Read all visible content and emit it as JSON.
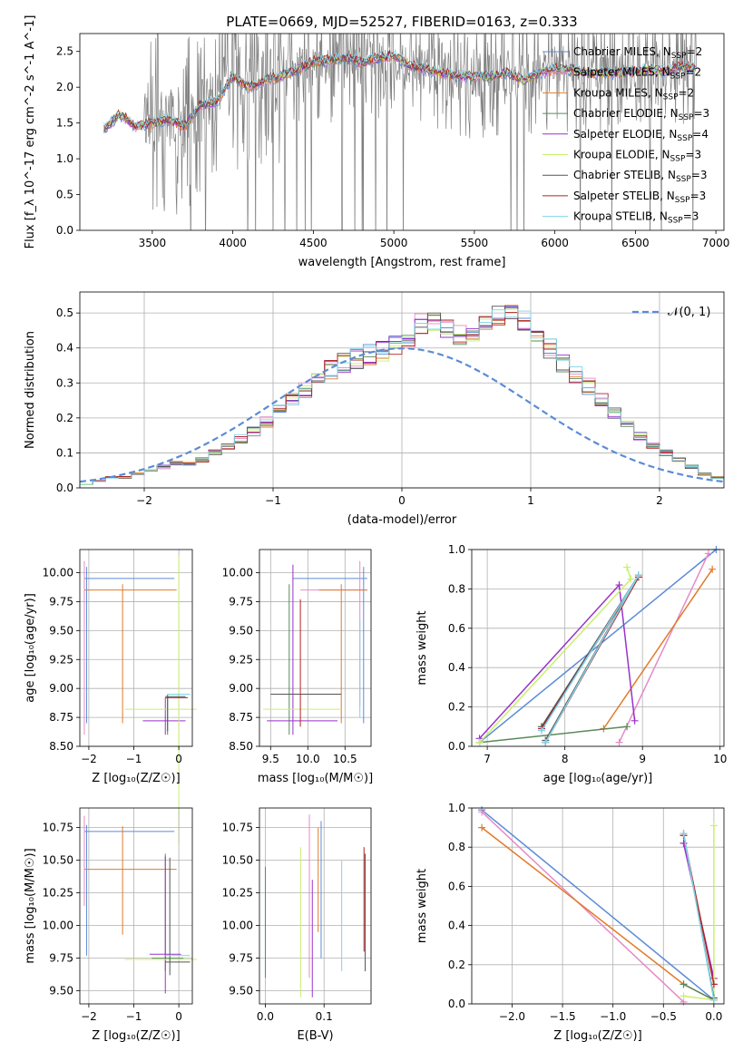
{
  "figure_title": "PLATE=0669, MJD=52527, FIBERID=0163, z=0.333",
  "colors": {
    "chabrier_miles": "#5b8bd6",
    "salpeter_miles": "#e58ac7",
    "kroupa_miles": "#e07b2a",
    "chabrier_elodie": "#5a8a5a",
    "salpeter_elodie": "#9932cc",
    "kroupa_elodie": "#c8f06e",
    "chabrier_stelib": "#555555",
    "salpeter_stelib": "#b22222",
    "kroupa_stelib": "#7fd4e8",
    "data": "#808080",
    "gaussian": "#5b8bd6"
  },
  "chart_data": [
    {
      "id": "spectrum",
      "type": "line",
      "xlabel": "wavelength [Angstrom, rest frame]",
      "ylabel": "Flux [f_λ 10^-17 erg cm^-2 s^-1 A^-1]",
      "xlim": [
        3050,
        7050
      ],
      "ylim": [
        0,
        2.75
      ],
      "xticks": [
        3500,
        4000,
        4500,
        5000,
        5500,
        6000,
        6500,
        7000
      ],
      "yticks": [
        0.0,
        0.5,
        1.0,
        1.5,
        2.0,
        2.5
      ],
      "grid": false,
      "legend_position": "top-right",
      "legend": [
        {
          "key": "chabrier_miles",
          "name": "Chabrier MILES, N",
          "sub": "SSP",
          "suffix": "=2"
        },
        {
          "key": "salpeter_miles",
          "name": "Salpeter MILES, N",
          "sub": "SSP",
          "suffix": "=2"
        },
        {
          "key": "kroupa_miles",
          "name": "Kroupa MILES, N",
          "sub": "SSP",
          "suffix": "=2"
        },
        {
          "key": "chabrier_elodie",
          "name": "Chabrier ELODIE, N",
          "sub": "SSP",
          "suffix": "=3"
        },
        {
          "key": "salpeter_elodie",
          "name": "Salpeter ELODIE, N",
          "sub": "SSP",
          "suffix": "=4"
        },
        {
          "key": "kroupa_elodie",
          "name": "Kroupa ELODIE, N",
          "sub": "SSP",
          "suffix": "=3"
        },
        {
          "key": "chabrier_stelib",
          "name": "Chabrier STELIB, N",
          "sub": "SSP",
          "suffix": "=3"
        },
        {
          "key": "salpeter_stelib",
          "name": "Salpeter STELIB, N",
          "sub": "SSP",
          "suffix": "=3"
        },
        {
          "key": "kroupa_stelib",
          "name": "Kroupa STELIB, N",
          "sub": "SSP",
          "suffix": "=3"
        }
      ],
      "continuum": {
        "x": [
          3200,
          3300,
          3400,
          3500,
          3600,
          3700,
          3800,
          3900,
          4000,
          4100,
          4200,
          4300,
          4400,
          4500,
          4600,
          4700,
          4800,
          4900,
          5000,
          5100,
          5200,
          5300,
          5400,
          5500,
          5600,
          5700,
          5800,
          5900,
          6000,
          6100,
          6200,
          6300,
          6400,
          6500,
          6600,
          6700,
          6800,
          6880
        ],
        "y": [
          1.42,
          1.62,
          1.45,
          1.5,
          1.55,
          1.45,
          1.75,
          1.8,
          2.15,
          2.0,
          2.1,
          2.15,
          2.25,
          2.35,
          2.38,
          2.4,
          2.35,
          2.4,
          2.45,
          2.3,
          2.25,
          2.2,
          2.15,
          2.15,
          2.15,
          2.2,
          2.1,
          2.2,
          2.25,
          2.25,
          2.2,
          2.2,
          2.2,
          2.22,
          2.25,
          2.22,
          2.3,
          2.25
        ]
      }
    },
    {
      "id": "residuals",
      "type": "line",
      "xlabel": "(data-model)/error",
      "ylabel": "Normed distribution",
      "xlim": [
        -2.5,
        2.5
      ],
      "ylim": [
        0,
        0.56
      ],
      "xticks": [
        -2,
        -1,
        0,
        1,
        2
      ],
      "yticks": [
        0.0,
        0.1,
        0.2,
        0.3,
        0.4,
        0.5
      ],
      "grid": true,
      "legend_position": "top-right",
      "legend_label": "𝒩(0, 1)",
      "histogram": {
        "bin_width": 0.1,
        "x_start": -2.5,
        "values": [
          0.01,
          0.02,
          0.03,
          0.03,
          0.04,
          0.05,
          0.06,
          0.07,
          0.07,
          0.08,
          0.1,
          0.12,
          0.14,
          0.16,
          0.19,
          0.22,
          0.25,
          0.28,
          0.31,
          0.34,
          0.36,
          0.37,
          0.38,
          0.39,
          0.41,
          0.43,
          0.47,
          0.48,
          0.45,
          0.44,
          0.43,
          0.46,
          0.49,
          0.51,
          0.48,
          0.44,
          0.4,
          0.36,
          0.33,
          0.29,
          0.25,
          0.21,
          0.18,
          0.15,
          0.12,
          0.1,
          0.08,
          0.06,
          0.04,
          0.03
        ]
      }
    },
    {
      "id": "age_vs_Z",
      "type": "scatter",
      "xlabel": "Z [log₁₀(Z/Z☉)]",
      "ylabel": "age [log₁₀(age/yr)]",
      "xlim": [
        -2.2,
        0.3
      ],
      "ylim": [
        8.5,
        10.2
      ],
      "xticks": [
        -2,
        -1,
        0
      ],
      "yticks": [
        8.5,
        8.75,
        9.0,
        9.25,
        9.5,
        9.75,
        10.0
      ],
      "grid": true
    },
    {
      "id": "age_vs_mass",
      "type": "scatter",
      "xlabel": "mass [log₁₀(M/M☉)]",
      "xlim": [
        9.35,
        10.85
      ],
      "ylim": [
        8.5,
        10.2
      ],
      "xticks": [
        9.5,
        10.0,
        10.5
      ],
      "yticks": [
        8.5,
        8.75,
        9.0,
        9.25,
        9.5,
        9.75,
        10.0
      ],
      "grid": true
    },
    {
      "id": "weight_vs_age",
      "type": "line",
      "xlabel": "age [log₁₀(age/yr)]",
      "ylabel": "mass weight",
      "xlim": [
        6.8,
        10.05
      ],
      "ylim": [
        0,
        1.0
      ],
      "xticks": [
        7,
        8,
        9,
        10
      ],
      "yticks": [
        0.0,
        0.2,
        0.4,
        0.6,
        0.8,
        1.0
      ],
      "grid": true,
      "series": [
        {
          "key": "chabrier_miles",
          "x": [
            6.9,
            9.95
          ],
          "y": [
            0.02,
            1.0
          ]
        },
        {
          "key": "salpeter_miles",
          "x": [
            8.7,
            9.85
          ],
          "y": [
            0.02,
            0.98
          ]
        },
        {
          "key": "kroupa_miles",
          "x": [
            8.5,
            9.9
          ],
          "y": [
            0.09,
            0.9
          ]
        },
        {
          "key": "chabrier_elodie",
          "x": [
            6.9,
            8.8
          ],
          "y": [
            0.02,
            0.1
          ]
        },
        {
          "key": "salpeter_elodie",
          "x": [
            6.9,
            8.7,
            8.9
          ],
          "y": [
            0.04,
            0.82,
            0.13
          ]
        },
        {
          "key": "kroupa_elodie",
          "x": [
            6.9,
            8.85,
            8.8
          ],
          "y": [
            0.02,
            0.85,
            0.91
          ]
        },
        {
          "key": "chabrier_stelib",
          "x": [
            7.7,
            8.95,
            7.75
          ],
          "y": [
            0.1,
            0.87,
            0.03
          ]
        },
        {
          "key": "salpeter_stelib",
          "x": [
            7.7,
            8.95,
            7.75
          ],
          "y": [
            0.09,
            0.86,
            0.02
          ]
        },
        {
          "key": "kroupa_stelib",
          "x": [
            7.7,
            8.95,
            7.75
          ],
          "y": [
            0.08,
            0.87,
            0.02
          ]
        }
      ]
    },
    {
      "id": "mass_vs_Z",
      "type": "scatter",
      "xlabel": "Z [log₁₀(Z/Z☉)]",
      "ylabel": "mass [log₁₀(M/M☉)]",
      "xlim": [
        -2.2,
        0.3
      ],
      "ylim": [
        9.4,
        10.9
      ],
      "xticks": [
        -2,
        -1,
        0
      ],
      "yticks": [
        9.5,
        9.75,
        10.0,
        10.25,
        10.5,
        10.75
      ],
      "grid": true
    },
    {
      "id": "mass_vs_EBV",
      "type": "scatter",
      "xlabel": "E(B-V)",
      "xlim": [
        -0.01,
        0.18
      ],
      "ylim": [
        9.4,
        10.9
      ],
      "xticks": [
        0.0,
        0.1
      ],
      "yticks": [
        9.5,
        9.75,
        10.0,
        10.25,
        10.5,
        10.75
      ],
      "grid": true
    },
    {
      "id": "weight_vs_Z",
      "type": "line",
      "xlabel": "Z [log₁₀(Z/Z☉)]",
      "ylabel": "mass weight",
      "xlim": [
        -2.4,
        0.1
      ],
      "ylim": [
        0,
        1.0
      ],
      "xticks": [
        -2.0,
        -1.5,
        -1.0,
        -0.5,
        0.0
      ],
      "yticks": [
        0.0,
        0.2,
        0.4,
        0.6,
        0.8,
        1.0
      ],
      "grid": true,
      "series": [
        {
          "key": "chabrier_miles",
          "x": [
            -2.3,
            0.0
          ],
          "y": [
            0.99,
            0.02
          ]
        },
        {
          "key": "salpeter_miles",
          "x": [
            -2.3,
            -0.3
          ],
          "y": [
            0.98,
            0.01
          ]
        },
        {
          "key": "kroupa_miles",
          "x": [
            -2.3,
            -0.3,
            0.0
          ],
          "y": [
            0.9,
            0.1,
            0.02
          ]
        },
        {
          "key": "chabrier_elodie",
          "x": [
            -0.3,
            0.0
          ],
          "y": [
            0.1,
            0.02
          ]
        },
        {
          "key": "salpeter_elodie",
          "x": [
            -0.3,
            0.0
          ],
          "y": [
            0.82,
            0.13
          ]
        },
        {
          "key": "kroupa_elodie",
          "x": [
            -0.3,
            0.0,
            0.0
          ],
          "y": [
            0.04,
            0.02,
            0.91
          ]
        },
        {
          "key": "chabrier_stelib",
          "x": [
            -0.3,
            0.0
          ],
          "y": [
            0.87,
            0.03
          ]
        },
        {
          "key": "salpeter_stelib",
          "x": [
            -0.3,
            0.0
          ],
          "y": [
            0.86,
            0.1
          ]
        },
        {
          "key": "kroupa_stelib",
          "x": [
            -0.3,
            0.0
          ],
          "y": [
            0.87,
            0.02
          ]
        }
      ]
    }
  ]
}
